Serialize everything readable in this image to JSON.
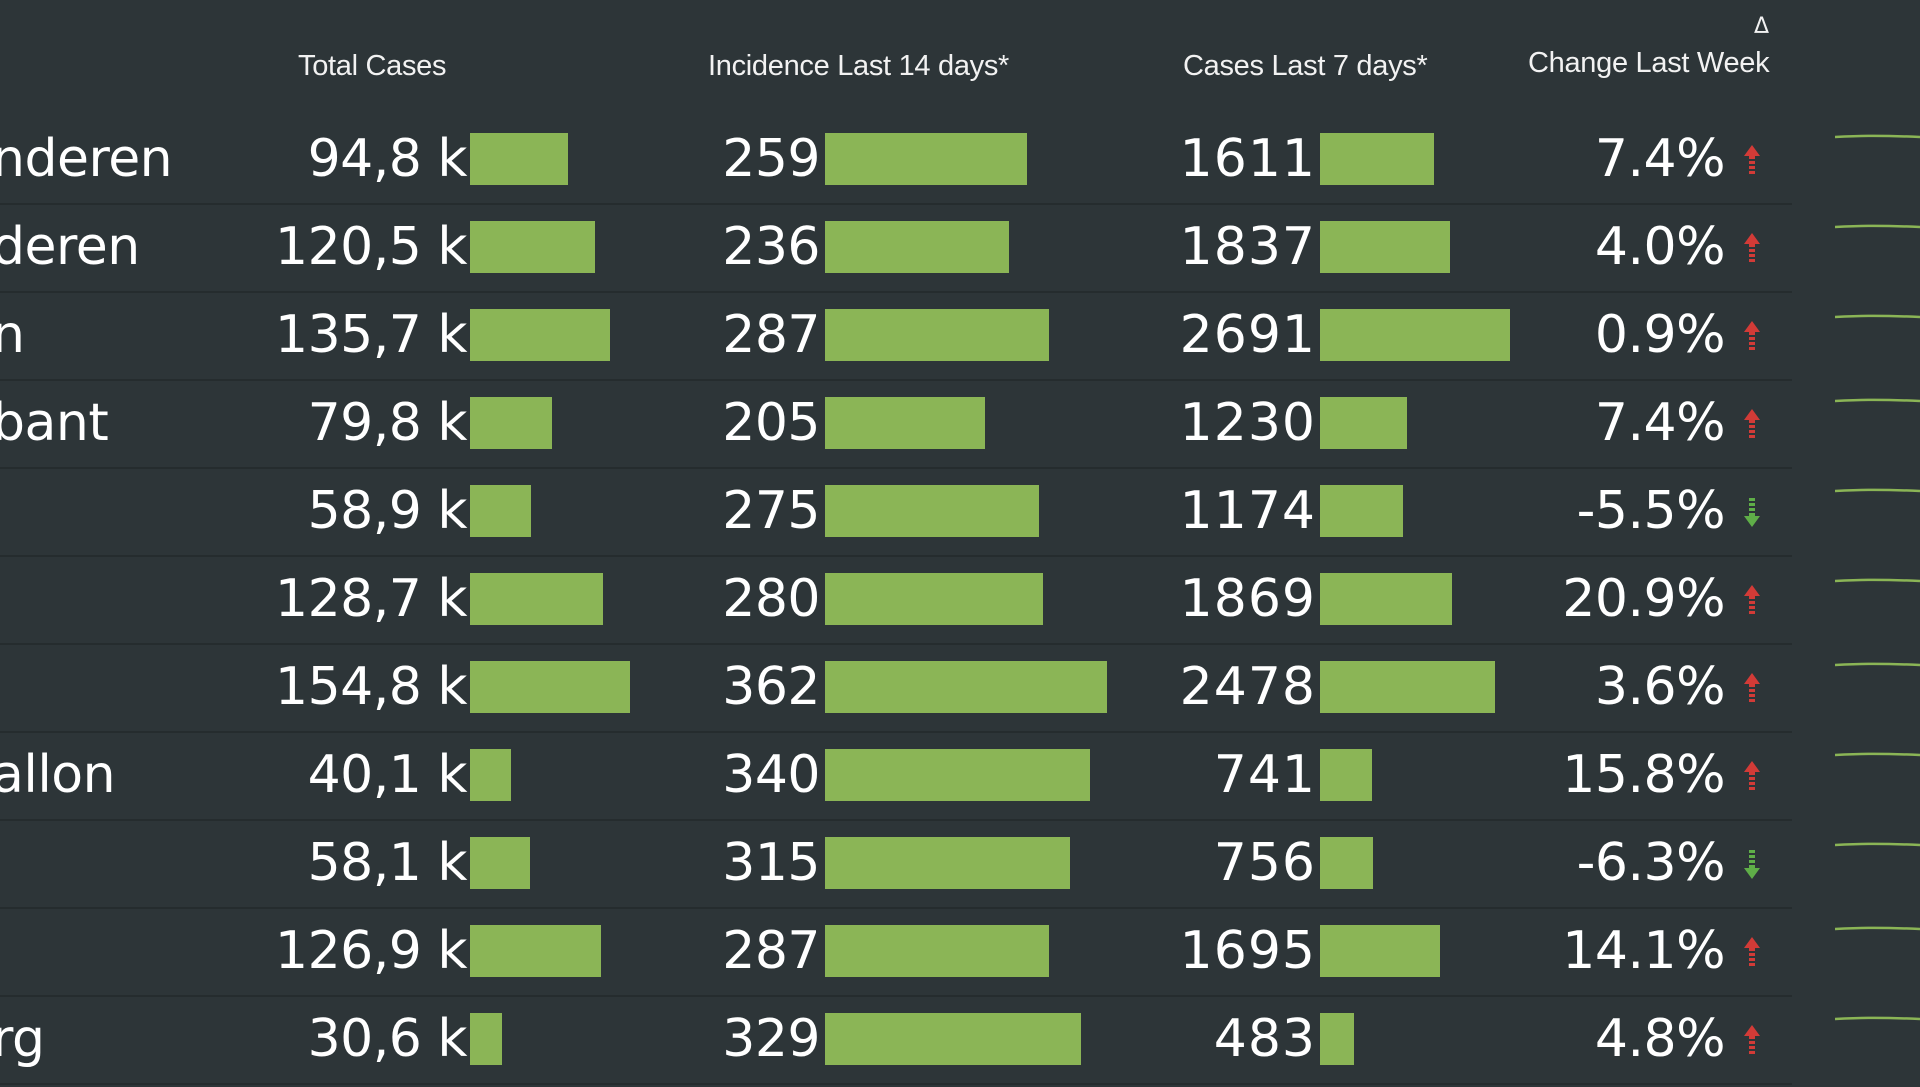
{
  "header": {
    "total_cases": "Total Cases",
    "incidence": "Incidence Last 14 days*",
    "cases7": "Cases Last 7 days*",
    "change": "Change Last Week",
    "sort_indicator": "Δ"
  },
  "colors": {
    "bar": "#8bb556",
    "up": "#d23b37",
    "down": "#5fae48",
    "spark": "#8bb556"
  },
  "rows": [
    {
      "name": "nderen",
      "total": "94,8 k",
      "total_value": 94.8,
      "incidence": "259",
      "incidence_value": 259,
      "cases7": "1611",
      "cases7_value": 1611,
      "change": "7.4%",
      "direction": "up",
      "spark_icon": "sparkline"
    },
    {
      "name": "deren",
      "total": "120,5 k",
      "total_value": 120.5,
      "incidence": "236",
      "incidence_value": 236,
      "cases7": "1837",
      "cases7_value": 1837,
      "change": "4.0%",
      "direction": "up",
      "spark_icon": "sparkline"
    },
    {
      "name": "n",
      "total": "135,7 k",
      "total_value": 135.7,
      "incidence": "287",
      "incidence_value": 287,
      "cases7": "2691",
      "cases7_value": 2691,
      "change": "0.9%",
      "direction": "up",
      "spark_icon": "sparkline"
    },
    {
      "name": "bant",
      "total": "79,8 k",
      "total_value": 79.8,
      "incidence": "205",
      "incidence_value": 205,
      "cases7": "1230",
      "cases7_value": 1230,
      "change": "7.4%",
      "direction": "up",
      "spark_icon": "sparkline"
    },
    {
      "name": "",
      "total": "58,9 k",
      "total_value": 58.9,
      "incidence": "275",
      "incidence_value": 275,
      "cases7": "1174",
      "cases7_value": 1174,
      "change": "-5.5%",
      "direction": "down",
      "spark_icon": "sparkline"
    },
    {
      "name": "",
      "total": "128,7 k",
      "total_value": 128.7,
      "incidence": "280",
      "incidence_value": 280,
      "cases7": "1869",
      "cases7_value": 1869,
      "change": "20.9%",
      "direction": "up",
      "spark_icon": "sparkline"
    },
    {
      "name": "",
      "total": "154,8 k",
      "total_value": 154.8,
      "incidence": "362",
      "incidence_value": 362,
      "cases7": "2478",
      "cases7_value": 2478,
      "change": "3.6%",
      "direction": "up",
      "spark_icon": "sparkline"
    },
    {
      "name": "allon",
      "total": "40,1 k",
      "total_value": 40.1,
      "incidence": "340",
      "incidence_value": 340,
      "cases7": "741",
      "cases7_value": 741,
      "change": "15.8%",
      "direction": "up",
      "spark_icon": "sparkline"
    },
    {
      "name": "",
      "total": "58,1 k",
      "total_value": 58.1,
      "incidence": "315",
      "incidence_value": 315,
      "cases7": "756",
      "cases7_value": 756,
      "change": "-6.3%",
      "direction": "down",
      "spark_icon": "sparkline"
    },
    {
      "name": "",
      "total": "126,9 k",
      "total_value": 126.9,
      "incidence": "287",
      "incidence_value": 287,
      "cases7": "1695",
      "cases7_value": 1695,
      "change": "14.1%",
      "direction": "up",
      "spark_icon": "sparkline"
    },
    {
      "name": "rg",
      "total": "30,6 k",
      "total_value": 30.6,
      "incidence": "329",
      "incidence_value": 329,
      "cases7": "483",
      "cases7_value": 483,
      "change": "4.8%",
      "direction": "up",
      "spark_icon": "sparkline"
    }
  ]
}
